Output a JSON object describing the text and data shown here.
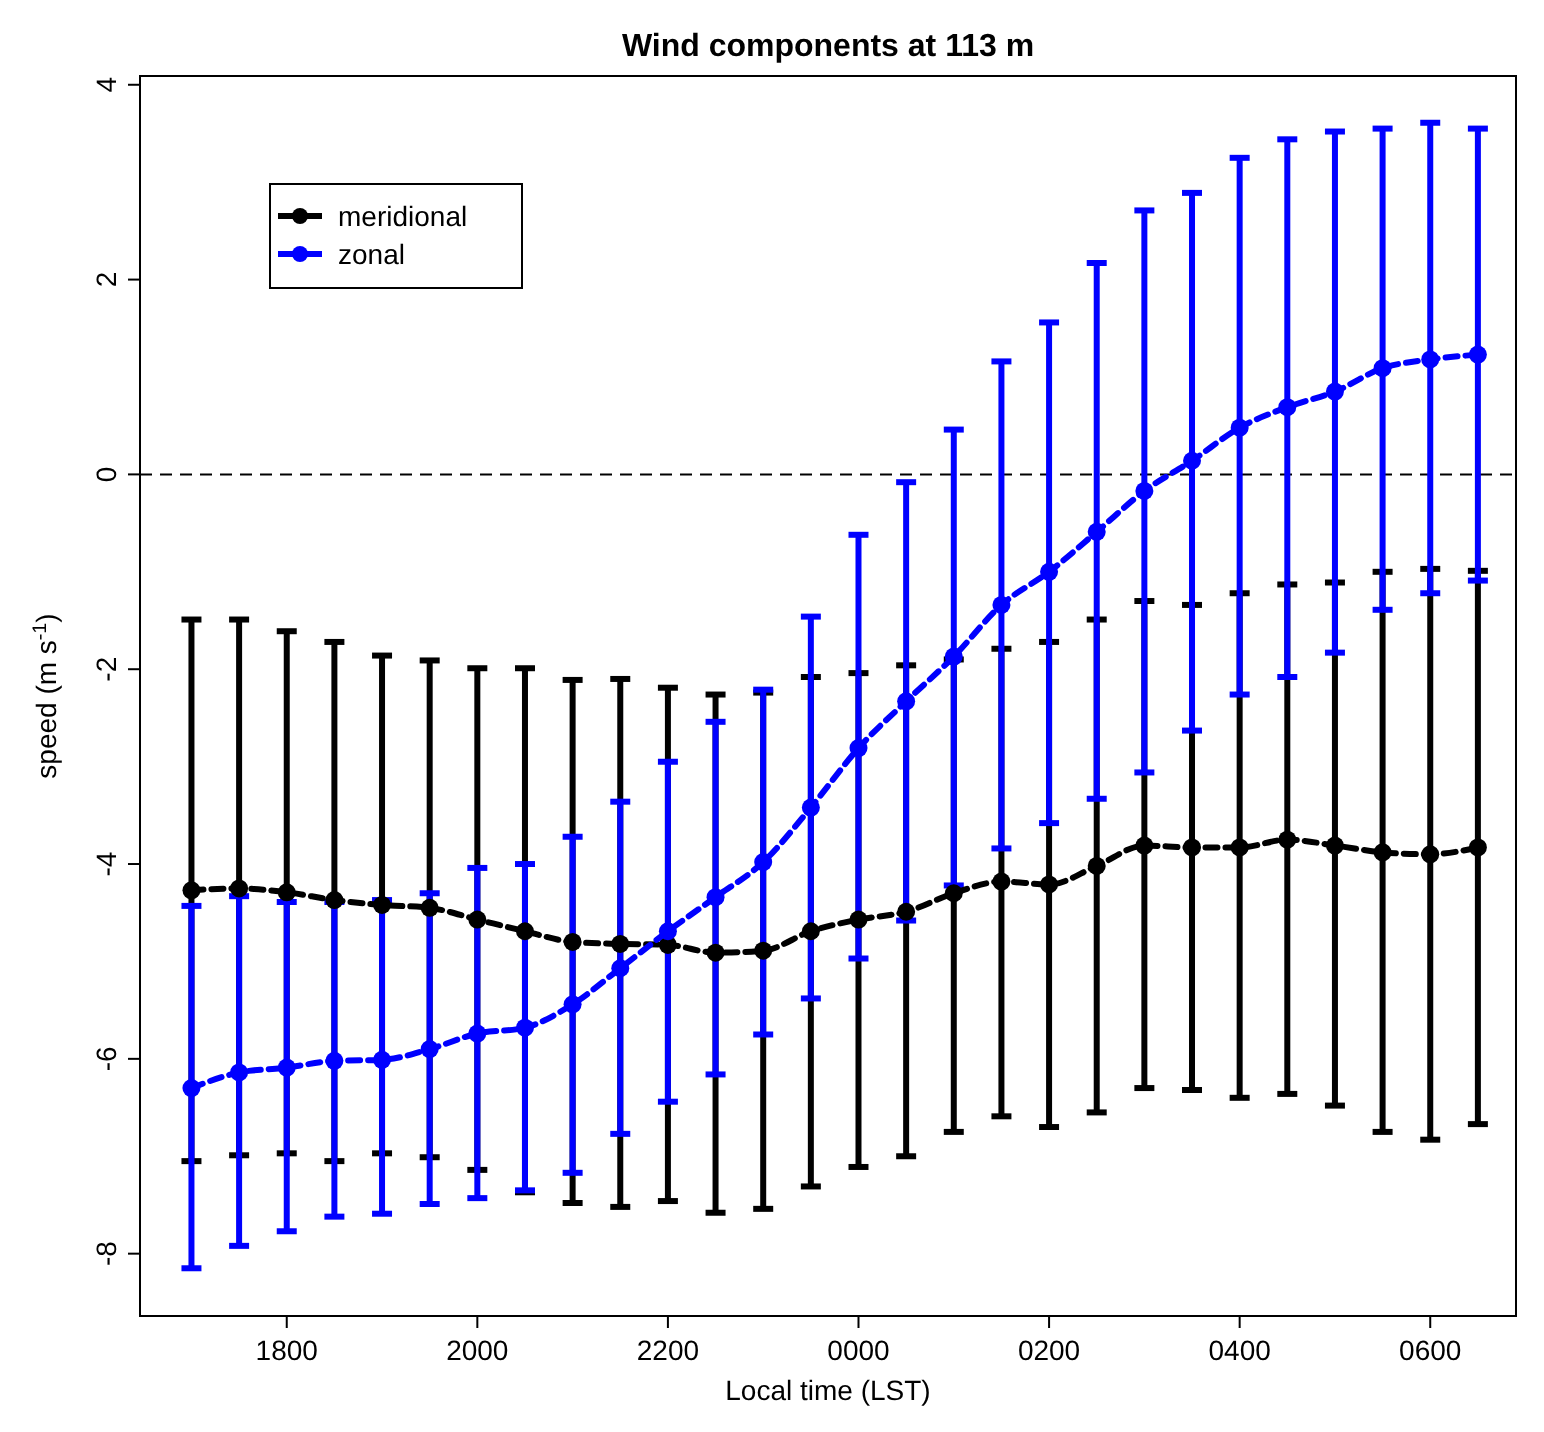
{
  "chart_data": {
    "type": "line",
    "title": "Wind components at 113 m",
    "xlabel": "Local time (LST)",
    "ylabel": "speed (m s$^{-1}$)",
    "categories": [
      null,
      null,
      "1800",
      null,
      null,
      null,
      "2000",
      null,
      null,
      null,
      "2200",
      null,
      null,
      null,
      "0000",
      null,
      null,
      null,
      "0200",
      null,
      null,
      null,
      "0400",
      null,
      null,
      null,
      "0600",
      null
    ],
    "ylim": [
      -8.64,
      4.09
    ],
    "yticks": [
      -8,
      -6,
      -4,
      -2,
      0,
      2,
      4
    ],
    "series": [
      {
        "name": "meridional",
        "color": "#000000",
        "values": [
          -4.27,
          -4.25,
          -4.29,
          -4.37,
          -4.42,
          -4.45,
          -4.57,
          -4.69,
          -4.8,
          -4.82,
          -4.83,
          -4.91,
          -4.89,
          -4.69,
          -4.57,
          -4.49,
          -4.3,
          -4.18,
          -4.21,
          -4.02,
          -3.81,
          -3.83,
          -3.83,
          -3.75,
          -3.81,
          -3.88,
          -3.9,
          -3.83
        ],
        "errors": [
          [
            -7.05,
            -1.49
          ],
          [
            -6.99,
            -1.49
          ],
          [
            -6.97,
            -1.61
          ],
          [
            -7.05,
            -1.72
          ],
          [
            -6.97,
            -1.86
          ],
          [
            -7.01,
            -1.91
          ],
          [
            -7.14,
            -1.99
          ],
          [
            -7.37,
            -1.99
          ],
          [
            -7.48,
            -2.11
          ],
          [
            -7.52,
            -2.1
          ],
          [
            -7.46,
            -2.19
          ],
          [
            -7.58,
            -2.26
          ],
          [
            -7.54,
            -2.24
          ],
          [
            -7.31,
            -2.08
          ],
          [
            -7.11,
            -2.04
          ],
          [
            -7.0,
            -1.96
          ],
          [
            -6.75,
            -1.9
          ],
          [
            -6.59,
            -1.79
          ],
          [
            -6.7,
            -1.72
          ],
          [
            -6.55,
            -1.49
          ],
          [
            -6.3,
            -1.3
          ],
          [
            -6.32,
            -1.34
          ],
          [
            -6.4,
            -1.22
          ],
          [
            -6.36,
            -1.13
          ],
          [
            -6.48,
            -1.11
          ],
          [
            -6.75,
            -1.0
          ],
          [
            -6.83,
            -0.97
          ],
          [
            -6.67,
            -0.99
          ]
        ]
      },
      {
        "name": "zonal",
        "color": "#0000ff",
        "values": [
          -6.3,
          -6.14,
          -6.09,
          -6.02,
          -6.01,
          -5.9,
          -5.74,
          -5.68,
          -5.44,
          -5.07,
          -4.69,
          -4.34,
          -3.98,
          -3.42,
          -2.81,
          -2.33,
          -1.87,
          -1.34,
          -1.0,
          -0.59,
          -0.17,
          0.14,
          0.48,
          0.69,
          0.85,
          1.09,
          1.18,
          1.23
        ],
        "errors": [
          [
            -8.15,
            -4.43
          ],
          [
            -7.92,
            -4.33
          ],
          [
            -7.77,
            -4.39
          ],
          [
            -7.62,
            -4.39
          ],
          [
            -7.59,
            -4.37
          ],
          [
            -7.49,
            -4.3
          ],
          [
            -7.43,
            -4.04
          ],
          [
            -7.35,
            -4.0
          ],
          [
            -7.17,
            -3.72
          ],
          [
            -6.77,
            -3.36
          ],
          [
            -6.44,
            -2.95
          ],
          [
            -6.16,
            -2.54
          ],
          [
            -5.75,
            -2.21
          ],
          [
            -5.38,
            -1.46
          ],
          [
            -4.97,
            -0.62
          ],
          [
            -4.58,
            -0.08
          ],
          [
            -4.22,
            0.46
          ],
          [
            -3.84,
            1.16
          ],
          [
            -3.58,
            1.56
          ],
          [
            -3.33,
            2.17
          ],
          [
            -3.06,
            2.71
          ],
          [
            -2.63,
            2.89
          ],
          [
            -2.26,
            3.25
          ],
          [
            -2.08,
            3.44
          ],
          [
            -1.83,
            3.52
          ],
          [
            -1.39,
            3.55
          ],
          [
            -1.22,
            3.61
          ],
          [
            -1.09,
            3.55
          ]
        ]
      }
    ],
    "ref_lines": [
      {
        "axis": "y",
        "value": 0,
        "color": "#000000",
        "line_style": "dashed"
      }
    ],
    "legend": "top left",
    "marker": "circle",
    "line_style": "dashed",
    "grid": false
  }
}
